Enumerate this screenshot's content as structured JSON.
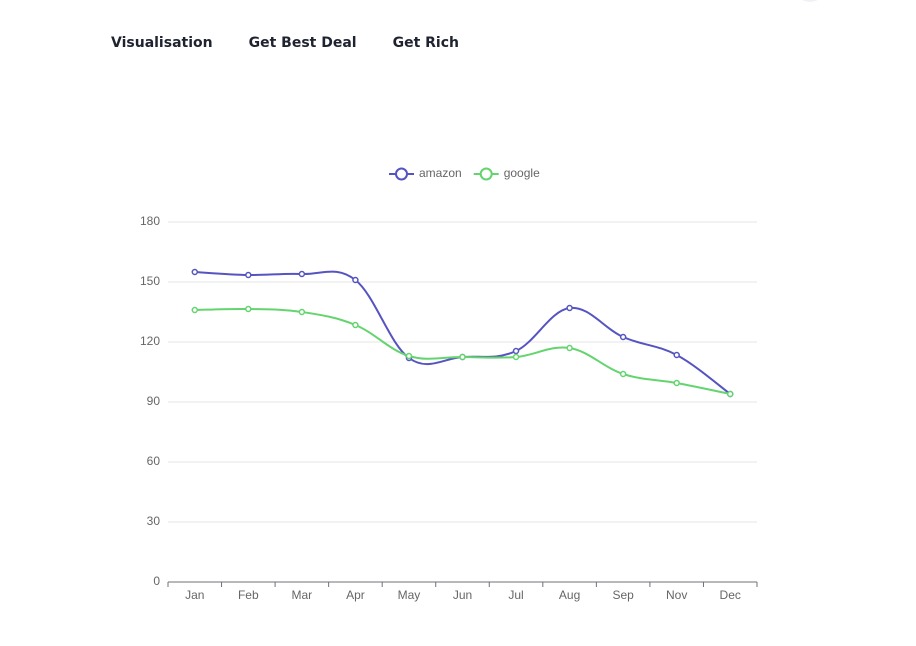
{
  "nav": [
    "Visualisation",
    "Get Best Deal",
    "Get Rich"
  ],
  "chart_data": {
    "type": "line",
    "smooth": true,
    "categories": [
      "Jan",
      "Feb",
      "Mar",
      "Apr",
      "May",
      "Jun",
      "Jul",
      "Aug",
      "Sep",
      "Nov",
      "Dec"
    ],
    "series": [
      {
        "name": "amazon",
        "color": "#5654c0",
        "values": [
          155,
          153.5,
          154,
          151,
          112,
          112.5,
          115.5,
          137,
          122.5,
          113.5,
          94
        ]
      },
      {
        "name": "google",
        "color": "#64d46f",
        "values": [
          136,
          136.5,
          135,
          128.5,
          113,
          112.5,
          112.5,
          117,
          104,
          99.5,
          94
        ]
      }
    ],
    "ylim": [
      0,
      180
    ],
    "yticks": [
      0,
      30,
      60,
      90,
      120,
      150,
      180
    ],
    "grid": true,
    "legend": "top"
  }
}
